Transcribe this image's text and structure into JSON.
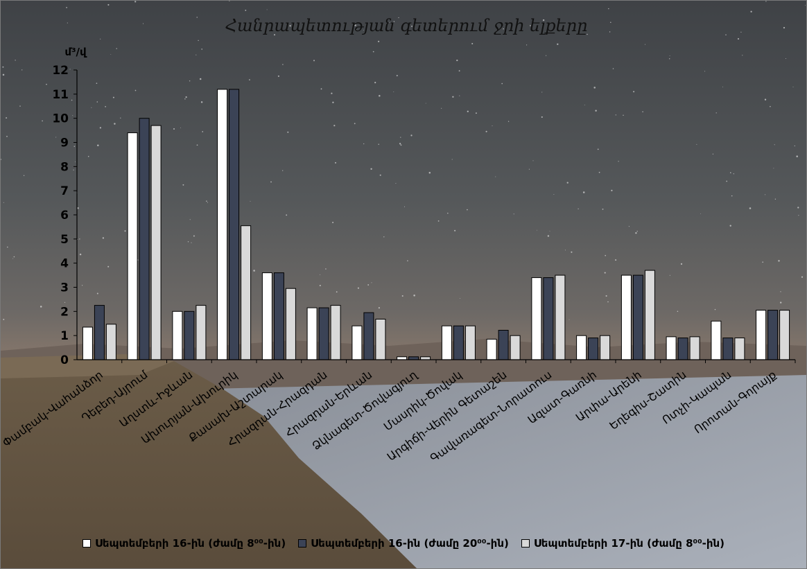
{
  "chart_data": {
    "type": "bar",
    "title": "Հանրապետության գետերում ջրի ելքերը",
    "ylabel": "մ³/վ",
    "ylim": [
      0,
      12
    ],
    "yticks": [
      0,
      1,
      2,
      3,
      4,
      5,
      6,
      7,
      8,
      9,
      10,
      11,
      12
    ],
    "categories": [
      "Փամբակ-Վահանձոր",
      "Դեբեդ-Այրում",
      "Աղստև-Իջևան",
      "Ախուրյան-Ախուրիկ",
      "Քասախ-Աշտարակ",
      "Հրազդան-Հրազդան",
      "Հրազդան-Երևան",
      "Ձկնագետ-Ծովագյուղ",
      "Մասրիկ-Ծովակ",
      "Արգիճի-Վերին Գետաշեն",
      "Գավառագետ-Նորատուս",
      "Ազատ-Գառնի",
      "Արփա-Արենի",
      "Եղեգիս-Շատին",
      "Ոտչի-Կապան",
      "Որոտան-Գորայք"
    ],
    "series": [
      {
        "name": "Սեպտեմբերի 16-ին (ժամը 8⁰⁰-ին)",
        "color": "#ffffff",
        "values": [
          1.35,
          9.4,
          2.0,
          11.2,
          3.6,
          2.15,
          1.4,
          0.12,
          1.4,
          0.85,
          3.4,
          1.0,
          3.5,
          0.95,
          1.6,
          2.05
        ]
      },
      {
        "name": "Սեպտեմբերի 16-ին (ժամը 20⁰⁰-ին)",
        "color": "#3b4356",
        "values": [
          2.25,
          10.0,
          2.0,
          11.2,
          3.6,
          2.15,
          1.95,
          0.12,
          1.4,
          1.22,
          3.4,
          0.9,
          3.5,
          0.9,
          0.9,
          2.05
        ]
      },
      {
        "name": "Սեպտեմբերի 17-ին (ժամը 8⁰⁰-ին)",
        "color": "#d9d9d9",
        "values": [
          1.47,
          9.7,
          2.25,
          5.55,
          2.95,
          2.25,
          1.68,
          0.12,
          1.4,
          1.0,
          3.5,
          1.0,
          3.7,
          0.95,
          0.9,
          2.05
        ]
      }
    ],
    "grid": false,
    "legend": "bottom"
  }
}
